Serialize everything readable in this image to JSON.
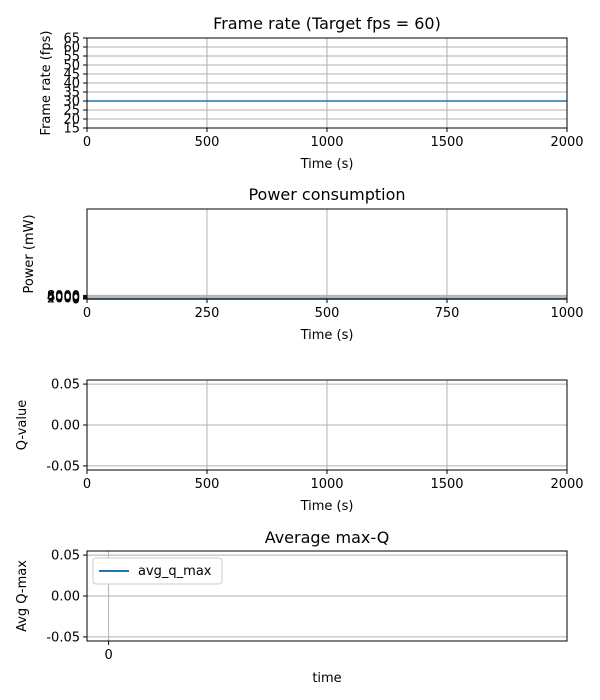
{
  "colors": {
    "line": "#1f77b4",
    "grid": "#b0b0b0",
    "axis": "#000000"
  },
  "chart_data": [
    {
      "id": "fps",
      "type": "line",
      "title": "Frame rate (Target fps = 60)",
      "xlabel": "Time (s)",
      "ylabel": "Frame rate (fps)",
      "xlim": [
        0,
        2000
      ],
      "ylim": [
        15,
        65
      ],
      "xticks": [
        0,
        500,
        1000,
        1500,
        2000
      ],
      "yticks": [
        15,
        20,
        25,
        30,
        35,
        40,
        45,
        50,
        55,
        60,
        65
      ],
      "grid": true,
      "series": [
        {
          "x": [
            0,
            2000
          ],
          "y": [
            30,
            30
          ]
        }
      ]
    },
    {
      "id": "power",
      "type": "line",
      "title": "Power consumption",
      "xlabel": "Time (s)",
      "ylabel": "Power (mW)",
      "xlim": [
        0,
        1000
      ],
      "ylim": [
        0,
        200000
      ],
      "xticks": [
        0,
        250,
        500,
        750,
        1000
      ],
      "yticks": [
        0,
        2000,
        4000,
        6000,
        8000
      ],
      "grid": true,
      "series": [
        {
          "x": [
            0,
            1000
          ],
          "y": [
            0,
            0
          ]
        }
      ]
    },
    {
      "id": "qvalue",
      "type": "line",
      "title": "",
      "xlabel": "Time (s)",
      "ylabel": "Q-value",
      "xlim": [
        0,
        2000
      ],
      "ylim": [
        -0.055,
        0.055
      ],
      "xticks": [
        0,
        500,
        1000,
        1500,
        2000
      ],
      "yticks": [
        "0.05",
        "0.00",
        "-0.05"
      ],
      "ytick_values": [
        0.05,
        0.0,
        -0.05
      ],
      "grid": true,
      "series": []
    },
    {
      "id": "avgq",
      "type": "line",
      "title": "Average max-Q",
      "xlabel": "time",
      "ylabel": "Avg Q-max",
      "xlim": [
        -0.045,
        0.955
      ],
      "ylim": [
        -0.055,
        0.055
      ],
      "xticks": [
        0
      ],
      "yticks": [
        "0.05",
        "0.00",
        "-0.05"
      ],
      "ytick_values": [
        0.05,
        0.0,
        -0.05
      ],
      "grid": true,
      "legend": {
        "placement": "upper-left",
        "entries": [
          "avg_q_max"
        ]
      },
      "series": [
        {
          "name": "avg_q_max",
          "x": [],
          "y": []
        }
      ]
    }
  ]
}
